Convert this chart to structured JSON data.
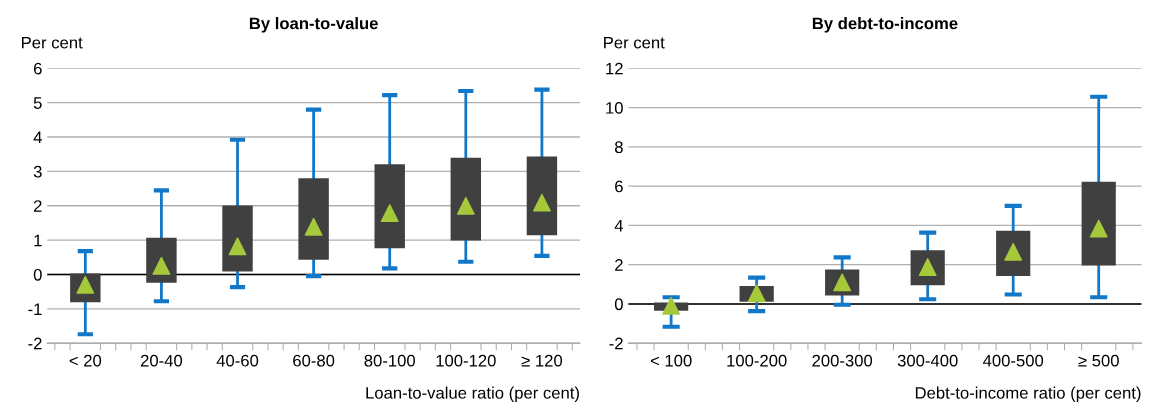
{
  "chart_data": [
    {
      "type": "box",
      "title": "By loan-to-value",
      "ylabel": "Per cent",
      "xlabel": "Loan-to-value ratio (per cent)",
      "categories": [
        "< 20",
        "20-40",
        "40-60",
        "60-80",
        "80-100",
        "100-120",
        "≥ 120"
      ],
      "boxes": [
        {
          "low": -1.74,
          "q1": -0.81,
          "q3": 0.03,
          "high": 0.68,
          "mean": -0.3
        },
        {
          "low": -0.78,
          "q1": -0.24,
          "q3": 1.07,
          "high": 2.45,
          "mean": 0.25
        },
        {
          "low": -0.37,
          "q1": 0.09,
          "q3": 2.01,
          "high": 3.92,
          "mean": 0.82
        },
        {
          "low": -0.05,
          "q1": 0.43,
          "q3": 2.8,
          "high": 4.8,
          "mean": 1.39
        },
        {
          "low": 0.18,
          "q1": 0.76,
          "q3": 3.21,
          "high": 5.22,
          "mean": 1.79
        },
        {
          "low": 0.37,
          "q1": 0.99,
          "q3": 3.4,
          "high": 5.34,
          "mean": 2.0
        },
        {
          "low": 0.54,
          "q1": 1.14,
          "q3": 3.43,
          "high": 5.38,
          "mean": 2.09
        }
      ],
      "color": "#404040",
      "marker": "triangle",
      "ylim": [
        -2,
        6
      ],
      "yticks": [
        -2,
        -1,
        0,
        1,
        2,
        3,
        4,
        5,
        6
      ],
      "grid": "y",
      "ref_lines": [
        {
          "axis": "y",
          "value": 0,
          "color": "#000000"
        }
      ]
    },
    {
      "type": "box",
      "title": "By debt-to-income",
      "ylabel": "Per cent",
      "xlabel": "Debt-to-income ratio (per cent)",
      "categories": [
        "< 100",
        "100-200",
        "200-300",
        "300-400",
        "400-500",
        "≥ 500"
      ],
      "boxes": [
        {
          "low": -1.16,
          "q1": -0.35,
          "q3": 0.07,
          "high": 0.34,
          "mean": -0.1
        },
        {
          "low": -0.37,
          "q1": 0.11,
          "q3": 0.91,
          "high": 1.34,
          "mean": 0.54
        },
        {
          "low": -0.04,
          "q1": 0.43,
          "q3": 1.75,
          "high": 2.37,
          "mean": 1.1
        },
        {
          "low": 0.24,
          "q1": 0.95,
          "q3": 2.74,
          "high": 3.63,
          "mean": 1.88
        },
        {
          "low": 0.48,
          "q1": 1.42,
          "q3": 3.73,
          "high": 4.99,
          "mean": 2.65
        },
        {
          "low": 0.34,
          "q1": 1.96,
          "q3": 6.22,
          "high": 10.55,
          "mean": 3.84
        }
      ],
      "color": "#404040",
      "marker": "triangle",
      "ylim": [
        -2,
        12
      ],
      "yticks": [
        -2,
        0,
        2,
        4,
        6,
        8,
        10,
        12
      ],
      "grid": "y",
      "ref_lines": [
        {
          "axis": "y",
          "value": 0,
          "color": "#000000"
        }
      ]
    }
  ]
}
